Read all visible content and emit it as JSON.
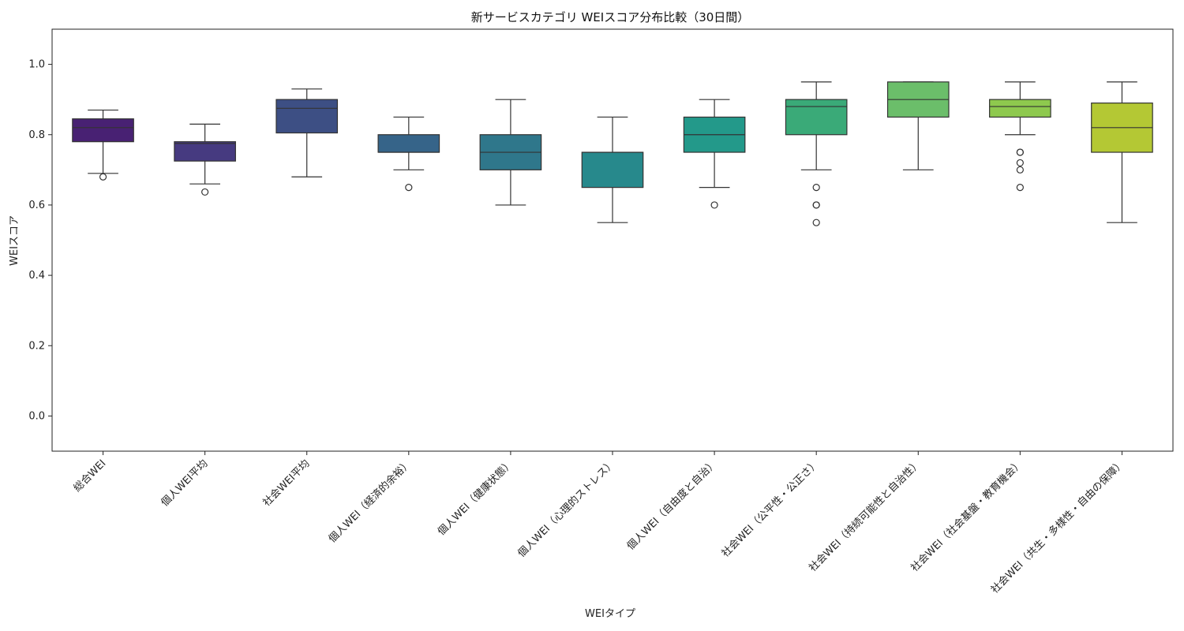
{
  "chart_data": {
    "type": "box",
    "title": "新サービスカテゴリ WEIスコア分布比較（30日間）",
    "xlabel": "WEIタイプ",
    "ylabel": "WEIスコア",
    "ylim": [
      -0.1,
      1.1
    ],
    "yticks": [
      0.0,
      0.2,
      0.4,
      0.6,
      0.8,
      1.0
    ],
    "ytick_labels": [
      "0.0",
      "0.2",
      "0.4",
      "0.6",
      "0.8",
      "1.0"
    ],
    "grid": false,
    "legend": "none",
    "categories": [
      "総合WEI",
      "個人WEI平均",
      "社会WEI平均",
      "個人WEI（経済的余裕）",
      "個人WEI（健康状態）",
      "個人WEI（心理的ストレス）",
      "個人WEI（自由度と自治）",
      "社会WEI（公平性・公正さ）",
      "社会WEI（持続可能性と自治性）",
      "社会WEI（社会基盤・教育機会）",
      "社会WEI（共生・多様性・自由の保障）"
    ],
    "boxes": [
      {
        "whisker_low": 0.69,
        "q1": 0.78,
        "median": 0.82,
        "q3": 0.845,
        "whisker_high": 0.87,
        "outliers": [
          0.68
        ],
        "color": "#482173"
      },
      {
        "whisker_low": 0.66,
        "q1": 0.725,
        "median": 0.775,
        "q3": 0.78,
        "whisker_high": 0.83,
        "outliers": [
          0.637
        ],
        "color": "#463a80"
      },
      {
        "whisker_low": 0.68,
        "q1": 0.805,
        "median": 0.875,
        "q3": 0.9,
        "whisker_high": 0.93,
        "outliers": [],
        "color": "#3d4f84"
      },
      {
        "whisker_low": 0.7,
        "q1": 0.75,
        "median": 0.75,
        "q3": 0.8,
        "whisker_high": 0.85,
        "outliers": [
          0.65
        ],
        "color": "#366489"
      },
      {
        "whisker_low": 0.6,
        "q1": 0.7,
        "median": 0.75,
        "q3": 0.8,
        "whisker_high": 0.9,
        "outliers": [],
        "color": "#2f778b"
      },
      {
        "whisker_low": 0.55,
        "q1": 0.65,
        "median": 0.75,
        "q3": 0.75,
        "whisker_high": 0.85,
        "outliers": [],
        "color": "#27898c"
      },
      {
        "whisker_low": 0.65,
        "q1": 0.75,
        "median": 0.8,
        "q3": 0.85,
        "whisker_high": 0.9,
        "outliers": [
          0.6
        ],
        "color": "#23998a"
      },
      {
        "whisker_low": 0.7,
        "q1": 0.8,
        "median": 0.88,
        "q3": 0.9,
        "whisker_high": 0.95,
        "outliers": [
          0.65,
          0.6,
          0.6,
          0.55
        ],
        "color": "#3aaa78"
      },
      {
        "whisker_low": 0.7,
        "q1": 0.85,
        "median": 0.9,
        "q3": 0.95,
        "whisker_high": 0.95,
        "outliers": [],
        "color": "#6bbe6a"
      },
      {
        "whisker_low": 0.8,
        "q1": 0.85,
        "median": 0.88,
        "q3": 0.9,
        "whisker_high": 0.95,
        "outliers": [
          0.75,
          0.75,
          0.72,
          0.7,
          0.65
        ],
        "color": "#8ec94e"
      },
      {
        "whisker_low": 0.55,
        "q1": 0.75,
        "median": 0.82,
        "q3": 0.89,
        "whisker_high": 0.95,
        "outliers": [],
        "color": "#b4c834"
      }
    ]
  }
}
